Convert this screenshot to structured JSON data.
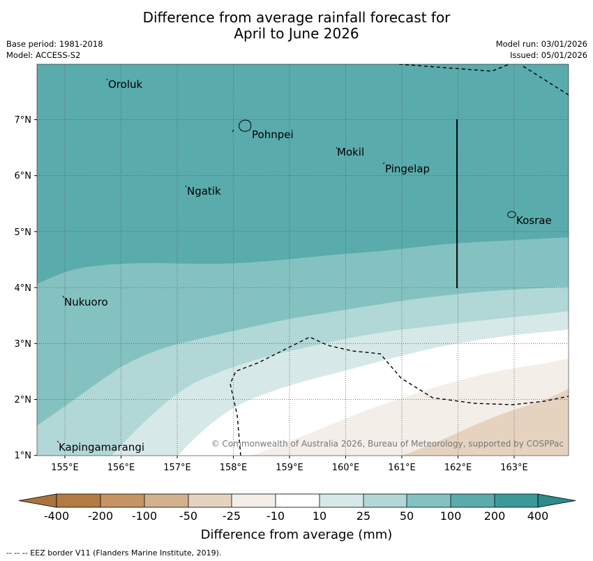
{
  "title_line1": "Difference from average rainfall forecast for",
  "title_line2": "April to June 2026",
  "base_period": "Base period: 1981-2018",
  "model": "Model: ACCESS-S2",
  "model_run": "Model run: 03/01/2026",
  "issued": "Issued: 05/01/2026",
  "lat_labels": [
    "7°N",
    "6°N",
    "5°N",
    "4°N",
    "3°N",
    "2°N",
    "1°N"
  ],
  "lon_labels": [
    "155°E",
    "156°E",
    "157°E",
    "158°E",
    "159°E",
    "160°E",
    "161°E",
    "162°E",
    "163°E"
  ],
  "places": {
    "oroluk": "Oroluk",
    "pohnpei": "Pohnpei",
    "mokil": "Mokil",
    "pingelap": "Pingelap",
    "ngatik": "Ngatik",
    "kosrae": "Kosrae",
    "nukuoro": "Nukuoro",
    "kapingamarangi": "Kapingamarangi"
  },
  "copyright": "© Commonwealth of Australia 2026, Bureau of Meteorology, supported by COSPPac",
  "colorbar": {
    "title": "Difference from average (mm)",
    "labels": [
      "-400",
      "-200",
      "-100",
      "-50",
      "-25",
      "-10",
      "10",
      "25",
      "50",
      "100",
      "200",
      "400"
    ],
    "colors": {
      "under": "#a9733b",
      "c1": "#b37a44",
      "c2": "#c49462",
      "c3": "#d3b08e",
      "c4": "#e5d3c0",
      "c5": "#f3eee8",
      "c6": "#ffffff",
      "c7": "#d6e9e8",
      "c8": "#b1d8d7",
      "c9": "#84c2c1",
      "c10": "#5aabac",
      "c11": "#3a9a9a",
      "over": "#2e8a8b"
    }
  },
  "footnote": "--  --  -- EEZ border V11 (Flanders Marine Institute, 2019)."
}
